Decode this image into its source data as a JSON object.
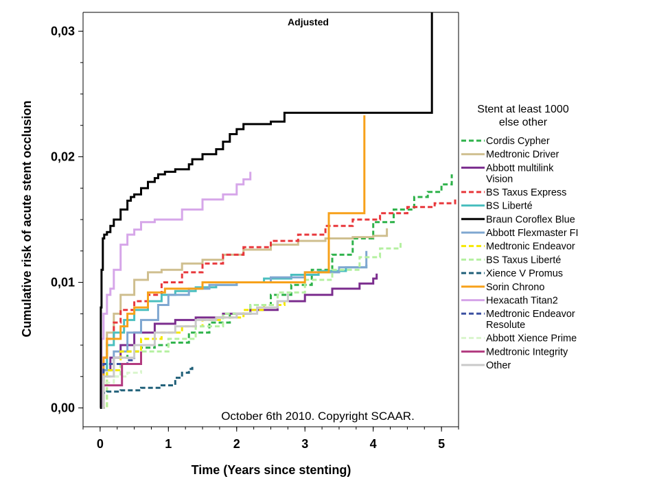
{
  "chart_data": {
    "type": "line",
    "title": "Adjusted",
    "xlabel": "Time (Years since stenting)",
    "ylabel": "Cumulative risk of acute stent occlusion",
    "xlim": [
      -0.25,
      5.25
    ],
    "ylim": [
      -0.0015,
      0.0315
    ],
    "x_ticks": [
      0,
      1,
      2,
      3,
      4,
      5
    ],
    "x_tick_labels": [
      "0",
      "1",
      "2",
      "3",
      "4",
      "5"
    ],
    "y_ticks": [
      0.0,
      0.01,
      0.02,
      0.03
    ],
    "y_tick_labels": [
      "0,00",
      "0,01",
      "0,02",
      "0,03"
    ],
    "annotation": "October 6th 2010. Copyright SCAAR.",
    "legend": {
      "title": "Stent at least 1000",
      "title2": "else other",
      "position": "right"
    },
    "series": [
      {
        "name": "Cordis Cypher",
        "color": "#2eb24a",
        "dash": true,
        "x": [
          0,
          0.05,
          0.1,
          0.2,
          0.4,
          0.6,
          0.8,
          1.0,
          1.3,
          1.6,
          1.9,
          2.2,
          2.5,
          2.8,
          3.1,
          3.4,
          3.7,
          4.0,
          4.3,
          4.6,
          4.8,
          5.0,
          5.15
        ],
        "y": [
          0,
          0.0025,
          0.0035,
          0.004,
          0.0045,
          0.0048,
          0.005,
          0.0052,
          0.006,
          0.0068,
          0.0075,
          0.0082,
          0.009,
          0.0098,
          0.011,
          0.0122,
          0.0135,
          0.0148,
          0.0158,
          0.0168,
          0.0172,
          0.0178,
          0.0186
        ]
      },
      {
        "name": "Medtronic Driver",
        "color": "#cfbf8f",
        "dash": false,
        "x": [
          0,
          0.05,
          0.1,
          0.2,
          0.3,
          0.5,
          0.7,
          0.9,
          1.2,
          1.5,
          1.8,
          2.1,
          2.5,
          2.9,
          3.3,
          3.7,
          4.0,
          4.2
        ],
        "y": [
          0,
          0.004,
          0.006,
          0.0075,
          0.009,
          0.0102,
          0.0108,
          0.011,
          0.0115,
          0.0118,
          0.0122,
          0.0126,
          0.013,
          0.0133,
          0.0135,
          0.0136,
          0.0137,
          0.0143
        ]
      },
      {
        "name": "Abbott multilink Vision",
        "color": "#7b2d8e",
        "dash": false,
        "x": [
          0,
          0.05,
          0.15,
          0.3,
          0.5,
          0.8,
          1.1,
          1.4,
          1.8,
          2.2,
          2.6,
          3.0,
          3.4,
          3.8,
          4.0,
          4.05
        ],
        "y": [
          0,
          0.003,
          0.004,
          0.005,
          0.006,
          0.0067,
          0.007,
          0.0072,
          0.0075,
          0.0078,
          0.0085,
          0.009,
          0.0095,
          0.0099,
          0.0103,
          0.0107
        ]
      },
      {
        "name": "BS Taxus Express",
        "color": "#e8373b",
        "dash": true,
        "x": [
          0,
          0.05,
          0.1,
          0.2,
          0.3,
          0.5,
          0.7,
          0.9,
          1.2,
          1.5,
          1.8,
          2.1,
          2.5,
          2.9,
          3.3,
          3.7,
          4.1,
          4.5,
          4.9,
          5.2
        ],
        "y": [
          0,
          0.004,
          0.0055,
          0.0068,
          0.0078,
          0.0085,
          0.009,
          0.01,
          0.0108,
          0.0115,
          0.0122,
          0.0128,
          0.0133,
          0.0138,
          0.0145,
          0.015,
          0.0155,
          0.016,
          0.0163,
          0.0166
        ]
      },
      {
        "name": "BS Liberté",
        "color": "#4bbfbf",
        "dash": false,
        "x": [
          0,
          0.05,
          0.1,
          0.2,
          0.35,
          0.5,
          0.7,
          0.9,
          1.1,
          1.4,
          1.7,
          2.0,
          2.4,
          2.8,
          3.2,
          3.6,
          3.9
        ],
        "y": [
          0,
          0.003,
          0.005,
          0.006,
          0.007,
          0.0078,
          0.0085,
          0.009,
          0.0093,
          0.0096,
          0.0098,
          0.01,
          0.0103,
          0.0106,
          0.0109,
          0.0112,
          0.0114
        ]
      },
      {
        "name": "Braun Coroflex Blue",
        "color": "#000000",
        "dash": false,
        "x": [
          0,
          0.01,
          0.02,
          0.04,
          0.06,
          0.1,
          0.15,
          0.2,
          0.3,
          0.4,
          0.45,
          0.5,
          0.6,
          0.7,
          0.8,
          0.85,
          0.95,
          1.1,
          1.3,
          1.35,
          1.5,
          1.7,
          1.8,
          1.9,
          2.0,
          2.1,
          2.5,
          2.7,
          3.0,
          3.5,
          4.0,
          4.5,
          4.85,
          4.86
        ],
        "y": [
          0,
          0.008,
          0.011,
          0.0135,
          0.0138,
          0.014,
          0.0145,
          0.015,
          0.0158,
          0.0165,
          0.0168,
          0.017,
          0.0175,
          0.018,
          0.0183,
          0.0186,
          0.0188,
          0.019,
          0.0194,
          0.0198,
          0.0202,
          0.0206,
          0.0212,
          0.0218,
          0.0222,
          0.0226,
          0.0228,
          0.0235,
          0.0235,
          0.0235,
          0.0235,
          0.0235,
          0.0235,
          0.0315
        ]
      },
      {
        "name": "Abbott Flexmaster FI",
        "color": "#7fa7d1",
        "dash": false,
        "x": [
          0,
          0.05,
          0.2,
          0.4,
          0.6,
          0.85,
          1.0,
          1.3,
          1.6,
          2.0,
          2.5,
          3.0,
          3.5,
          3.9
        ],
        "y": [
          0,
          0.003,
          0.0045,
          0.006,
          0.007,
          0.0082,
          0.009,
          0.0095,
          0.0098,
          0.01,
          0.0104,
          0.0108,
          0.0112,
          0.0125
        ]
      },
      {
        "name": "Medtronic Endeavor",
        "color": "#f5e800",
        "dash": true,
        "x": [
          0,
          0.1,
          0.3,
          0.6,
          0.9,
          1.2,
          1.5,
          1.8,
          2.1,
          2.4,
          2.7
        ],
        "y": [
          0,
          0.003,
          0.0045,
          0.0055,
          0.006,
          0.0065,
          0.007,
          0.0072,
          0.0078,
          0.0082,
          0.0085
        ]
      },
      {
        "name": "BS Taxus Liberté",
        "color": "#b4f0a0",
        "dash": true,
        "x": [
          0,
          0.1,
          0.3,
          0.6,
          1.0,
          1.4,
          1.8,
          2.2,
          2.6,
          3.0,
          3.4,
          3.8,
          4.1,
          4.4
        ],
        "y": [
          0,
          0.0025,
          0.0035,
          0.0045,
          0.0055,
          0.0065,
          0.0075,
          0.0082,
          0.0092,
          0.0102,
          0.011,
          0.012,
          0.0127,
          0.0133
        ]
      },
      {
        "name": "Xience V Promus",
        "color": "#1f5f78",
        "dash": true,
        "x": [
          0,
          0.03,
          0.1,
          0.3,
          0.6,
          0.9,
          1.1,
          1.2,
          1.3,
          1.35
        ],
        "y": [
          0,
          0.0012,
          0.0013,
          0.0014,
          0.0016,
          0.0018,
          0.0024,
          0.0028,
          0.0031,
          0.0034
        ]
      },
      {
        "name": "Sorin Chrono",
        "color": "#f7a11a",
        "dash": false,
        "x": [
          0,
          0.05,
          0.1,
          0.3,
          0.4,
          0.5,
          0.7,
          0.95,
          1.5,
          2.0,
          2.5,
          2.7,
          3.0,
          3.3,
          3.35,
          3.86,
          3.87
        ],
        "y": [
          0,
          0.004,
          0.0055,
          0.0065,
          0.0075,
          0.008,
          0.0092,
          0.0095,
          0.01,
          0.01,
          0.01,
          0.01,
          0.0108,
          0.0108,
          0.0155,
          0.0155,
          0.0233
        ]
      },
      {
        "name": "Hexacath Titan2",
        "color": "#d6a6e9",
        "dash": false,
        "x": [
          0,
          0.02,
          0.05,
          0.1,
          0.15,
          0.2,
          0.3,
          0.4,
          0.5,
          0.6,
          0.8,
          1.0,
          1.2,
          1.5,
          1.8,
          2.0,
          2.1,
          2.2
        ],
        "y": [
          0,
          0.0055,
          0.0075,
          0.009,
          0.0095,
          0.011,
          0.013,
          0.0138,
          0.0142,
          0.0148,
          0.015,
          0.015,
          0.0158,
          0.0166,
          0.017,
          0.0178,
          0.0182,
          0.0188
        ]
      },
      {
        "name": "Medtronic Endeavor Resolute",
        "color": "#3a4fa0",
        "dash": true,
        "x": [
          0,
          0.05,
          0.2,
          0.4,
          0.5
        ],
        "y": [
          0,
          0.0035,
          0.0035,
          0.0038,
          0.004
        ]
      },
      {
        "name": "Abbott Xience Prime",
        "color": "#d9f5cc",
        "dash": true,
        "x": [
          0,
          0.05,
          0.2,
          0.4,
          0.6
        ],
        "y": [
          0,
          0.002,
          0.0025,
          0.0028,
          0.003
        ]
      },
      {
        "name": "Medtronic Integrity",
        "color": "#b23a7f",
        "dash": false,
        "x": [
          0,
          0.05,
          0.3,
          0.32,
          0.5,
          0.6
        ],
        "y": [
          0,
          0.0018,
          0.0018,
          0.0035,
          0.0035,
          0.0045
        ]
      },
      {
        "name": "Other",
        "color": "#c9c9c9",
        "dash": false,
        "x": [
          0,
          0.05,
          0.2,
          0.5,
          0.8,
          1.1,
          1.4,
          1.7,
          2.0,
          2.3,
          2.6,
          2.75
        ],
        "y": [
          0,
          0.0025,
          0.004,
          0.005,
          0.006,
          0.0065,
          0.007,
          0.0072,
          0.0075,
          0.008,
          0.0085,
          0.0091
        ]
      }
    ]
  }
}
